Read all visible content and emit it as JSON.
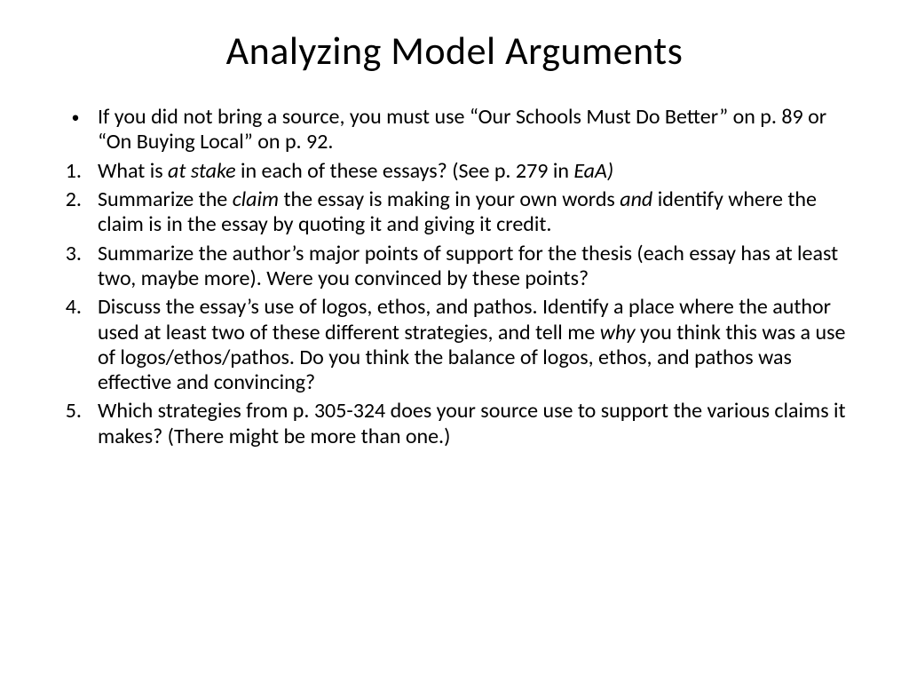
{
  "slide": {
    "title": "Analyzing Model Arguments",
    "background_color": "#ffffff",
    "text_color": "#000000",
    "title_fontsize": 44,
    "body_fontsize": 24,
    "font_family": "Calibri",
    "bullet": {
      "marker": "•",
      "text_before": "If you did not bring a source, you must use “Our Schools Must Do Better” on p. 89 or “On Buying Local” on p. 92."
    },
    "items": [
      {
        "num": "1.",
        "pre": "What is ",
        "it1": "at stake",
        "mid": " in each of these essays? (See p. 279 in ",
        "it2": "EaA)",
        "post": ""
      },
      {
        "num": "2.",
        "pre": "Summarize the ",
        "it1": "claim",
        "mid": " the essay is making in your own words ",
        "it2": "and",
        "post": " identify where the claim is in the essay by quoting it and giving it credit."
      },
      {
        "num": "3.",
        "pre": "Summarize the author’s major points of support for the thesis (each essay has at least two, maybe more).  Were you convinced by these points?",
        "it1": "",
        "mid": "",
        "it2": "",
        "post": ""
      },
      {
        "num": "4.",
        "pre": "Discuss the essay’s use of logos, ethos, and pathos.  Identify a place where the author used at least two of these different strategies, and tell me ",
        "it1": "why",
        "mid": " you think this was a use of logos/ethos/pathos. Do you think the balance of logos, ethos, and pathos was effective and convincing?",
        "it2": "",
        "post": ""
      },
      {
        "num": "5.",
        "pre": "Which strategies from p. 305-324 does your source use to support the various claims it makes? (There might be more than one.)",
        "it1": "",
        "mid": "",
        "it2": "",
        "post": ""
      }
    ]
  }
}
